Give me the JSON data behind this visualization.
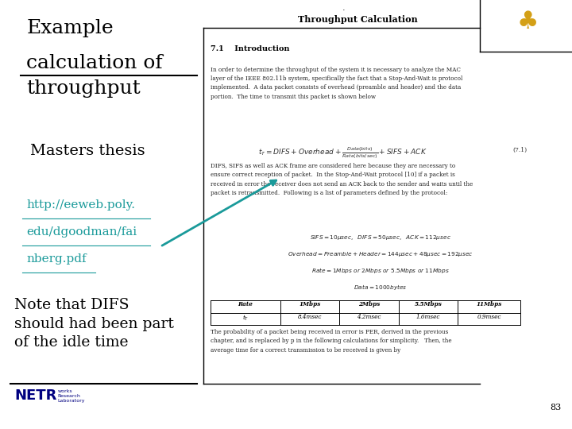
{
  "bg_color": "#ffffff",
  "left_panel_bg": "#ffffff",
  "right_panel_bg": "#f5f5f0",
  "title_line1": "Example",
  "title_line2": "calculation of",
  "title_line3": "throughput",
  "subtitle_text": "Masters thesis",
  "link_line1": "http://eeweb.poly.",
  "link_line2": "edu/dgoodman/fai",
  "link_line3": "nberg.pdf",
  "note_text": "Note that DIFS\nshould had been part\nof the idle time",
  "doc_title": "Throughput Calculation",
  "section_title": "7.1    Introduction",
  "body_text_1": "In order to determine the throughput of the system it is necessary to analyze the MAC\nlayer of the IEEE 802.11b system, specifically the fact that a Stop-And-Wait is protocol\nimplemented.  A data packet consists of overhead (preamble and header) and the data\nportion.  The time to transmit this packet is shown below",
  "body_text_2": "DIFS, SIFS as well as ACK frame are considered here because they are necessary to\nensure correct reception of packet.  In the Stop-And-Wait protocol [10] if a packet is\nreceived in error the receiver does not send an ACK back to the sender and waits until the\npacket is retransmitted.  Following is a list of parameters defined by the protocol:",
  "params_lines": [
    "$SIFS = 10\\mu sec ,\\ \\ DIFS = 50\\mu sec ,\\ \\ ACK = 112\\mu sec$",
    "$Overhead = Preamble + Header = 144\\mu sec + 48\\mu sec = 192\\mu sec$",
    "$Rate = 1Mbps\\ or\\ 2Mbps\\ or\\ 5.5Mbps\\ or\\ 11Mbps$",
    "$Data = 1000bytes$"
  ],
  "table_headers": [
    "Rate",
    "1Mbps",
    "2Mbps",
    "5.5Mbps",
    "11Mbps"
  ],
  "table_row_label": "t",
  "table_row": [
    "8.4msec",
    "4.2msec",
    "1.6msec",
    "0.9msec"
  ],
  "body_text_3": "The probability of a packet being received in error is PER, derived in the previous\nchapter, and is replaced by p in the following calculations for simplicity.   Then, the\naverage time for a correct transmission to be received is given by",
  "page_number": "83",
  "link_color": "#1a9a9a",
  "arrow_color": "#1a9a9a",
  "title_color": "#000000",
  "note_color": "#000000",
  "divider_color": "#000000",
  "logo_color": "#d4a017",
  "netr_color": "#000080"
}
